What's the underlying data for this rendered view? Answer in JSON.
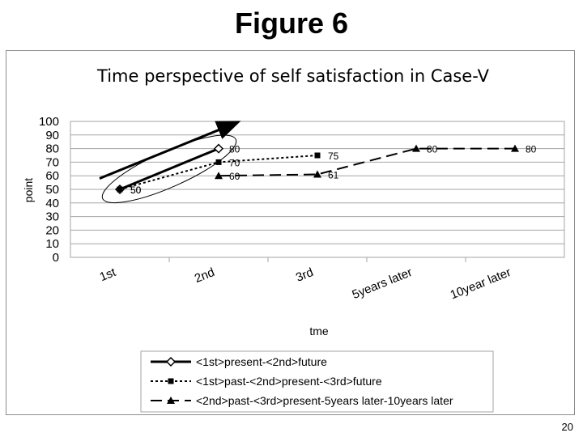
{
  "page": {
    "title": "Figure 6",
    "page_number": "20"
  },
  "chart_data": {
    "type": "line",
    "title": "Time perspective of self satisfaction in Case-V",
    "xlabel": "tme",
    "ylabel": "point",
    "categories": [
      "1st",
      "2nd",
      "3rd",
      "5years later",
      "10year later"
    ],
    "ylim": [
      0,
      100
    ],
    "yticks": [
      0,
      10,
      20,
      30,
      40,
      50,
      60,
      70,
      80,
      90,
      100
    ],
    "grid": "horizontal",
    "legend_position": "bottom",
    "series": [
      {
        "name": "<1st>present-<2nd>future",
        "style": "solid",
        "marker": "diamond",
        "points": [
          {
            "x": "1st",
            "y": 50
          },
          {
            "x": "2nd",
            "y": 80
          }
        ]
      },
      {
        "name": "<1st>past-<2nd>present-<3rd>future",
        "style": "dotted",
        "marker": "square",
        "points": [
          {
            "x": "1st",
            "y": 50
          },
          {
            "x": "2nd",
            "y": 70
          },
          {
            "x": "3rd",
            "y": 75
          }
        ]
      },
      {
        "name": "<2nd>past-<3rd>present-5years later-10years later",
        "style": "dashed",
        "marker": "triangle",
        "points": [
          {
            "x": "2nd",
            "y": 60
          },
          {
            "x": "3rd",
            "y": 61
          },
          {
            "x": "5years later",
            "y": 80
          },
          {
            "x": "10year later",
            "y": 80
          }
        ]
      }
    ],
    "annotations": [
      {
        "type": "arrow",
        "shape": "upward trend arrow above the first series"
      },
      {
        "type": "ellipse",
        "shape": "encircles the points between 1st and 2nd"
      }
    ],
    "colors": {
      "lines": "#000000",
      "grid": "#a6a6a6",
      "frame": "#8c8c8c"
    }
  }
}
